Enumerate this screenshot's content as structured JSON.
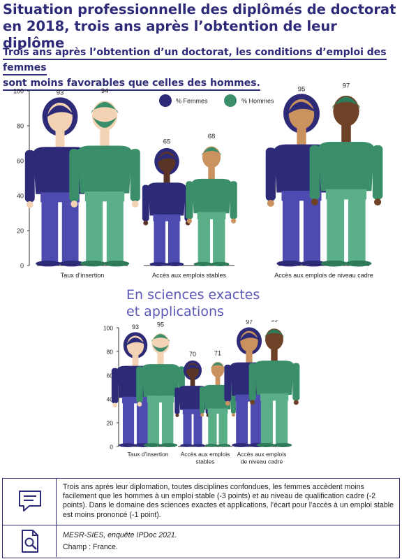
{
  "header": {
    "title_line1": "Situation professionnelle des diplômés de doctorat",
    "title_line2": "en 2018, trois ans après l’obtention de leur diplôme",
    "subtitle_line1": "Trois ans après l’obtention d’un doctorat, les conditions d’emploi des femmes",
    "subtitle_line2": "sont moins favorables que celles des hommes."
  },
  "colors": {
    "femmes": "#2d2a78",
    "hommes": "#3a8f6a",
    "title": "#2d2a78",
    "section": "#5b58b8"
  },
  "chart_data": [
    {
      "type": "bar",
      "title": "",
      "categories": [
        "Taux d’insertion",
        "Accès aux emplois stables",
        "Accès aux emplois de niveau cadre"
      ],
      "series": [
        {
          "name": "% Femmes",
          "values": [
            93,
            65,
            95
          ]
        },
        {
          "name": "% Hommes",
          "values": [
            94,
            68,
            97
          ]
        }
      ],
      "ylim": [
        0,
        100
      ],
      "yticks": [
        "0",
        "20",
        "40",
        "60",
        "80",
        "100"
      ],
      "legend_position": "top-center",
      "mark_style": "human-figures"
    },
    {
      "type": "bar",
      "title": "En sciences exactes et applications",
      "title_line1": "En sciences exactes",
      "title_line2": "et applications",
      "categories": [
        "Taux d’insertion",
        "Accès aux emplois stables",
        "Accès aux emplois de niveau cadre"
      ],
      "category_lines": [
        [
          "Taux d’insertion"
        ],
        [
          "Accès aux emplois",
          "stables"
        ],
        [
          "Accès aux emplois",
          "de niveau cadre"
        ]
      ],
      "series": [
        {
          "name": "% Femmes",
          "values": [
            93,
            70,
            97
          ]
        },
        {
          "name": "% Hommes",
          "values": [
            95,
            71,
            99
          ]
        }
      ],
      "ylim": [
        0,
        100
      ],
      "yticks": [
        "0",
        "20",
        "40",
        "60",
        "80",
        "100"
      ],
      "mark_style": "human-figures"
    }
  ],
  "footer": {
    "note": "Trois ans après leur diplomation, toutes disciplines confondues, les femmes accèdent moins facilement que les hommes à un emploi stable (-3 points) et au niveau de qualification cadre (-2 points). Dans le domaine des sciences exactes et applications, l’écart pour l’accès à un emploi stable est moins prononcé (-1 point).",
    "source": "MESR-SIES, enquête IPDoc 2021.",
    "champ": "Champ : France.",
    "note_icon": "speech-bubble-icon",
    "source_icon": "document-magnifier-icon"
  }
}
